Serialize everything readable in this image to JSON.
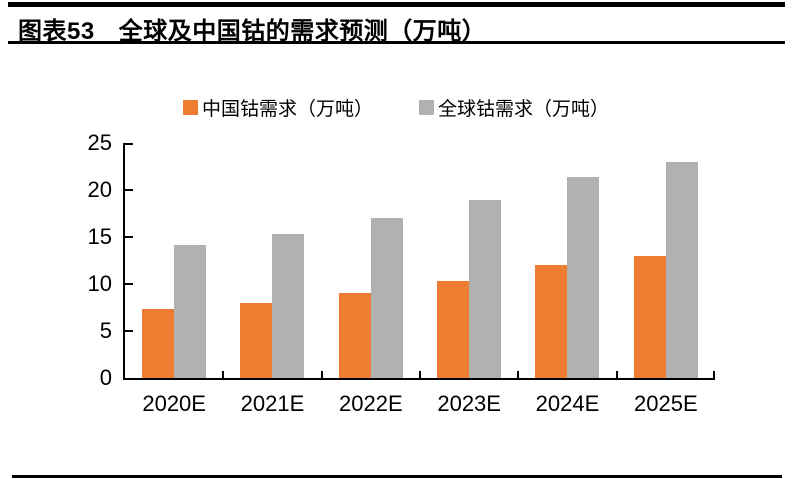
{
  "header": {
    "label": "图表53",
    "title": "全球及中国钴的需求预测（万吨）"
  },
  "chart_data": {
    "type": "bar",
    "title": "全球及中国钴的需求预测（万吨）",
    "categories": [
      "2020E",
      "2021E",
      "2022E",
      "2023E",
      "2024E",
      "2025E"
    ],
    "series": [
      {
        "name": "中国钴需求（万吨）",
        "color": "#ED7D31",
        "values": [
          7.3,
          8.0,
          9.0,
          10.3,
          12.0,
          13.0
        ]
      },
      {
        "name": "全球钴需求（万吨）",
        "color": "#B1B1B1",
        "values": [
          14.1,
          15.3,
          17.0,
          18.9,
          21.4,
          23.0
        ]
      }
    ],
    "xlabel": "",
    "ylabel": "",
    "ylim": [
      0,
      25
    ],
    "yticks": [
      0,
      5,
      10,
      15,
      20,
      25
    ],
    "grid": false,
    "legend_position": "top-center",
    "axis_color": "#000000"
  }
}
